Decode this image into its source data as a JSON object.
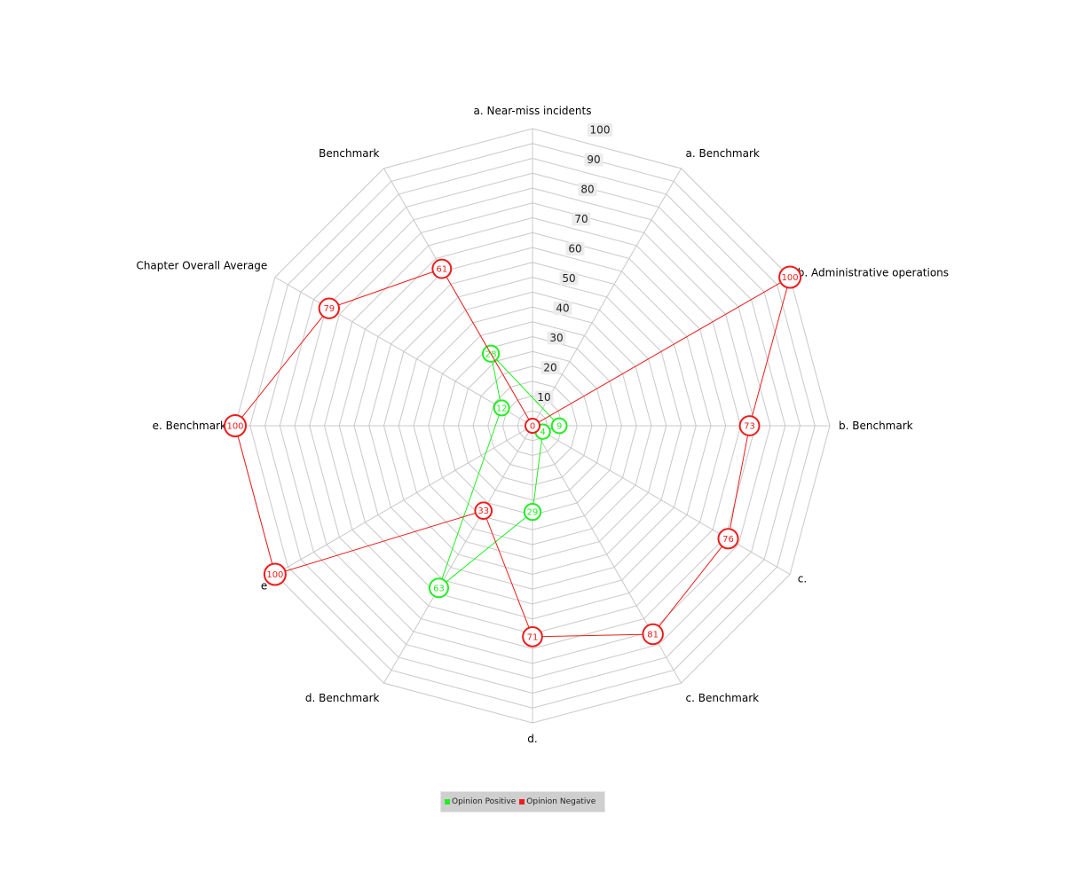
{
  "chart_data": {
    "type": "radar",
    "axes": [
      "a. Near-miss incidents",
      "a. Benchmark",
      "b. Administrative operations",
      "b. Benchmark",
      "c.",
      "c. Benchmark",
      "d.",
      "d. Benchmark",
      "e",
      "e. Benchmark",
      "Chapter Overall Average",
      "Benchmark"
    ],
    "rlim": [
      0,
      100
    ],
    "ticks": [
      10,
      20,
      30,
      40,
      50,
      60,
      70,
      80,
      90,
      100
    ],
    "grid": true,
    "legend_position": "bottom",
    "series": [
      {
        "name": "Opinion Positive",
        "color": "#22ee22",
        "values": [
          null,
          null,
          null,
          9,
          4,
          null,
          29,
          63,
          null,
          null,
          12,
          28
        ]
      },
      {
        "name": "Opinion Negative",
        "color": "#ee1c1c",
        "values": [
          0,
          null,
          100,
          73,
          76,
          81,
          71,
          33,
          100,
          100,
          79,
          61
        ]
      }
    ]
  },
  "legend": {
    "items": [
      {
        "label": "Opinion Positive",
        "color": "#22ee22"
      },
      {
        "label": "Opinion Negative",
        "color": "#ee1c1c"
      }
    ]
  }
}
